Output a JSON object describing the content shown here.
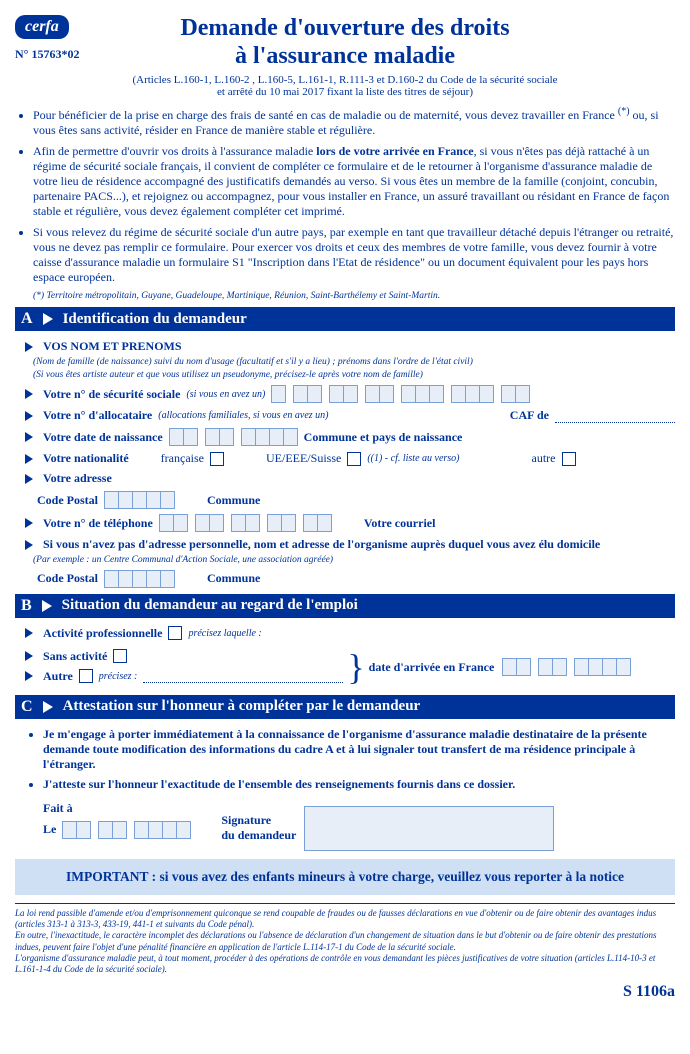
{
  "badge": "cerfa",
  "formNumber": "N° 15763*02",
  "title1": "Demande d'ouverture des droits",
  "title2": "à l'assurance maladie",
  "subtitle1": "(Articles L.160-1, L.160-2 , L.160-5, L.161-1, R.111-3 et D.160-2 du Code de la sécurité sociale",
  "subtitle2": "et arrêté du 10 mai 2017 fixant la liste des titres de séjour)",
  "intro": {
    "b1a": "Pour bénéficier de la prise en charge des frais de santé en cas de maladie ou de maternité, vous devez travailler en France ",
    "b1star": "(*)",
    "b1b": " ou, si vous êtes sans activité, résider en France de manière stable et régulière.",
    "b2a": "Afin de permettre d'ouvrir vos droits à l'assurance maladie ",
    "b2bold": "lors de votre arrivée en France",
    "b2b": ", si vous n'êtes pas déjà rattaché à un régime de sécurité sociale français, il convient de compléter ce formulaire et de le retourner à l'organisme d'assurance maladie de votre lieu de résidence accompagné des justificatifs demandés au verso. Si vous êtes un membre de la famille (conjoint, concubin, partenaire PACS...), et rejoignez ou accompagnez, pour vous installer en France, un assuré travaillant ou résidant en France de façon stable et régulière, vous devez également compléter cet imprimé.",
    "b3": "Si vous relevez du régime de sécurité sociale d'un autre pays, par exemple en tant que travailleur détaché depuis l'étranger ou retraité, vous ne devez pas remplir ce formulaire. Pour exercer vos droits et ceux des membres de votre famille, vous devez fournir à votre caisse d'assurance maladie un formulaire S1 \"Inscription dans l'Etat de résidence\" ou un document équivalent pour les pays hors espace européen.",
    "footnote": "(*) Territoire métropolitain, Guyane, Guadeloupe, Martinique, Réunion, Saint-Barthélemy et Saint-Martin."
  },
  "A": {
    "letter": "A",
    "title": "Identification du demandeur",
    "name": "VOS NOM ET PRENOMS",
    "nameNote1": "(Nom de famille (de naissance) suivi du nom d'usage (facultatif et s'il y a lieu) ; prénoms dans l'ordre de l'état civil)",
    "nameNote2": "(Si vous êtes artiste auteur et que vous utilisez un pseudonyme, précisez-le après votre nom de famille)",
    "ssn": "Votre n° de sécurité sociale",
    "ssnNote": "(si vous en avez un)",
    "alloc": "Votre n° d'allocataire",
    "allocNote": "(allocations familiales, si vous en avez un)",
    "caf": "CAF de",
    "dob": "Votre date de naissance",
    "pob": "Commune et pays de naissance",
    "nat": "Votre nationalité",
    "natFr": "française",
    "natEu": "UE/EEE/Suisse",
    "natEuNote": "((1) - cf. liste au verso)",
    "natOther": "autre",
    "addr": "Votre adresse",
    "cp": "Code Postal",
    "commune": "Commune",
    "tel": "Votre n° de téléphone",
    "email": "Votre courriel",
    "noAddr": "Si vous n'avez pas d'adresse personnelle, nom et adresse de l'organisme auprès duquel vous avez élu domicile",
    "noAddrNote": "(Par exemple : un Centre Communal d'Action Sociale, une association agréée)"
  },
  "B": {
    "letter": "B",
    "title": "Situation du demandeur au regard de l'emploi",
    "act": "Activité professionnelle",
    "actNote": "précisez laquelle :",
    "none": "Sans activité",
    "other": "Autre",
    "otherNote": "précisez :",
    "arrival": "date d'arrivée en France"
  },
  "C": {
    "letter": "C",
    "title": "Attestation sur l'honneur à compléter par le demandeur",
    "b1": "Je m'engage à porter immédiatement à la connaissance de l'organisme d'assurance maladie destinataire de la présente demande toute modification des informations du cadre A et à lui signaler tout transfert de ma résidence principale à l'étranger.",
    "b2": "J'atteste sur l'honneur l'exactitude de l'ensemble des renseignements fournis dans ce dossier.",
    "faitA": "Fait à",
    "le": "Le",
    "sig1": "Signature",
    "sig2": "du demandeur"
  },
  "important1": "IMPORTANT : si vous avez des enfants mineurs à votre charge, veuillez vous ",
  "important2": "reporter à la notice",
  "legal": {
    "p1": "La loi rend passible d'amende et/ou d'emprisonnement quiconque se rend coupable de fraudes ou de fausses déclarations en vue d'obtenir ou de faire obtenir des avantages indus (articles 313-1 à 313-3, 433-19, 441-1 et suivants du Code pénal).",
    "p2a": "En outre, l'inexactitude, le caractère incomplet des déclarations ou l'absence de déclaration d'un changement de situation dans le but d'obtenir ou de faire obtenir des prestations indues, peuvent faire l'objet d'une pénalité financière en application de l'article L.114-17-1 du Code de la sécurité sociale.",
    "p2b": "L'organisme d'assurance maladie peut, à tout moment, procéder à des opérations de contrôle en vous demandant les pièces justificatives de votre situation ",
    "p2c": "(articles L.114-10-3 et L.161-1-4 du Code de la sécurité sociale)."
  },
  "formCode": "S 1106a"
}
